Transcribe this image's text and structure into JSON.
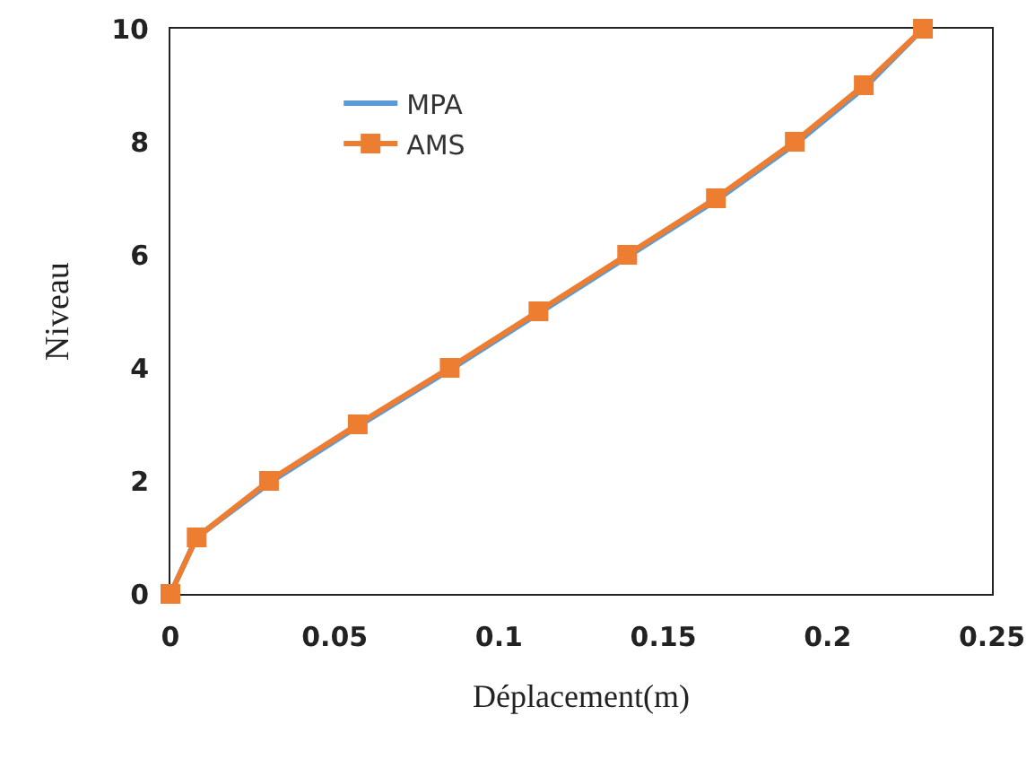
{
  "chart_data": {
    "type": "line",
    "xlabel": "Déplacement(m)",
    "ylabel": "Niveau",
    "xlim": [
      0,
      0.25
    ],
    "xticks": [
      0,
      0.05,
      0.1,
      0.15,
      0.2,
      0.25
    ],
    "ylim": [
      0,
      10
    ],
    "yticks": [
      0,
      2,
      4,
      6,
      8,
      10
    ],
    "grid": false,
    "legend": "top left",
    "line_style": "solid",
    "series": [
      {
        "name": "MPA",
        "color": "#5b9bd5",
        "marker": "none",
        "x": [
          0,
          0.008,
          0.031,
          0.058,
          0.086,
          0.113,
          0.14,
          0.167,
          0.191,
          0.212,
          0.229
        ],
        "values": [
          0,
          1,
          2,
          3,
          4,
          5,
          6,
          7,
          8,
          9,
          10
        ]
      },
      {
        "name": "AMS",
        "color": "#ed7d31",
        "marker": "square",
        "x": [
          0,
          0.008,
          0.03,
          0.057,
          0.085,
          0.112,
          0.139,
          0.166,
          0.19,
          0.211,
          0.229
        ],
        "values": [
          0,
          1,
          2,
          3,
          4,
          5,
          6,
          7,
          8,
          9,
          10
        ]
      }
    ]
  }
}
